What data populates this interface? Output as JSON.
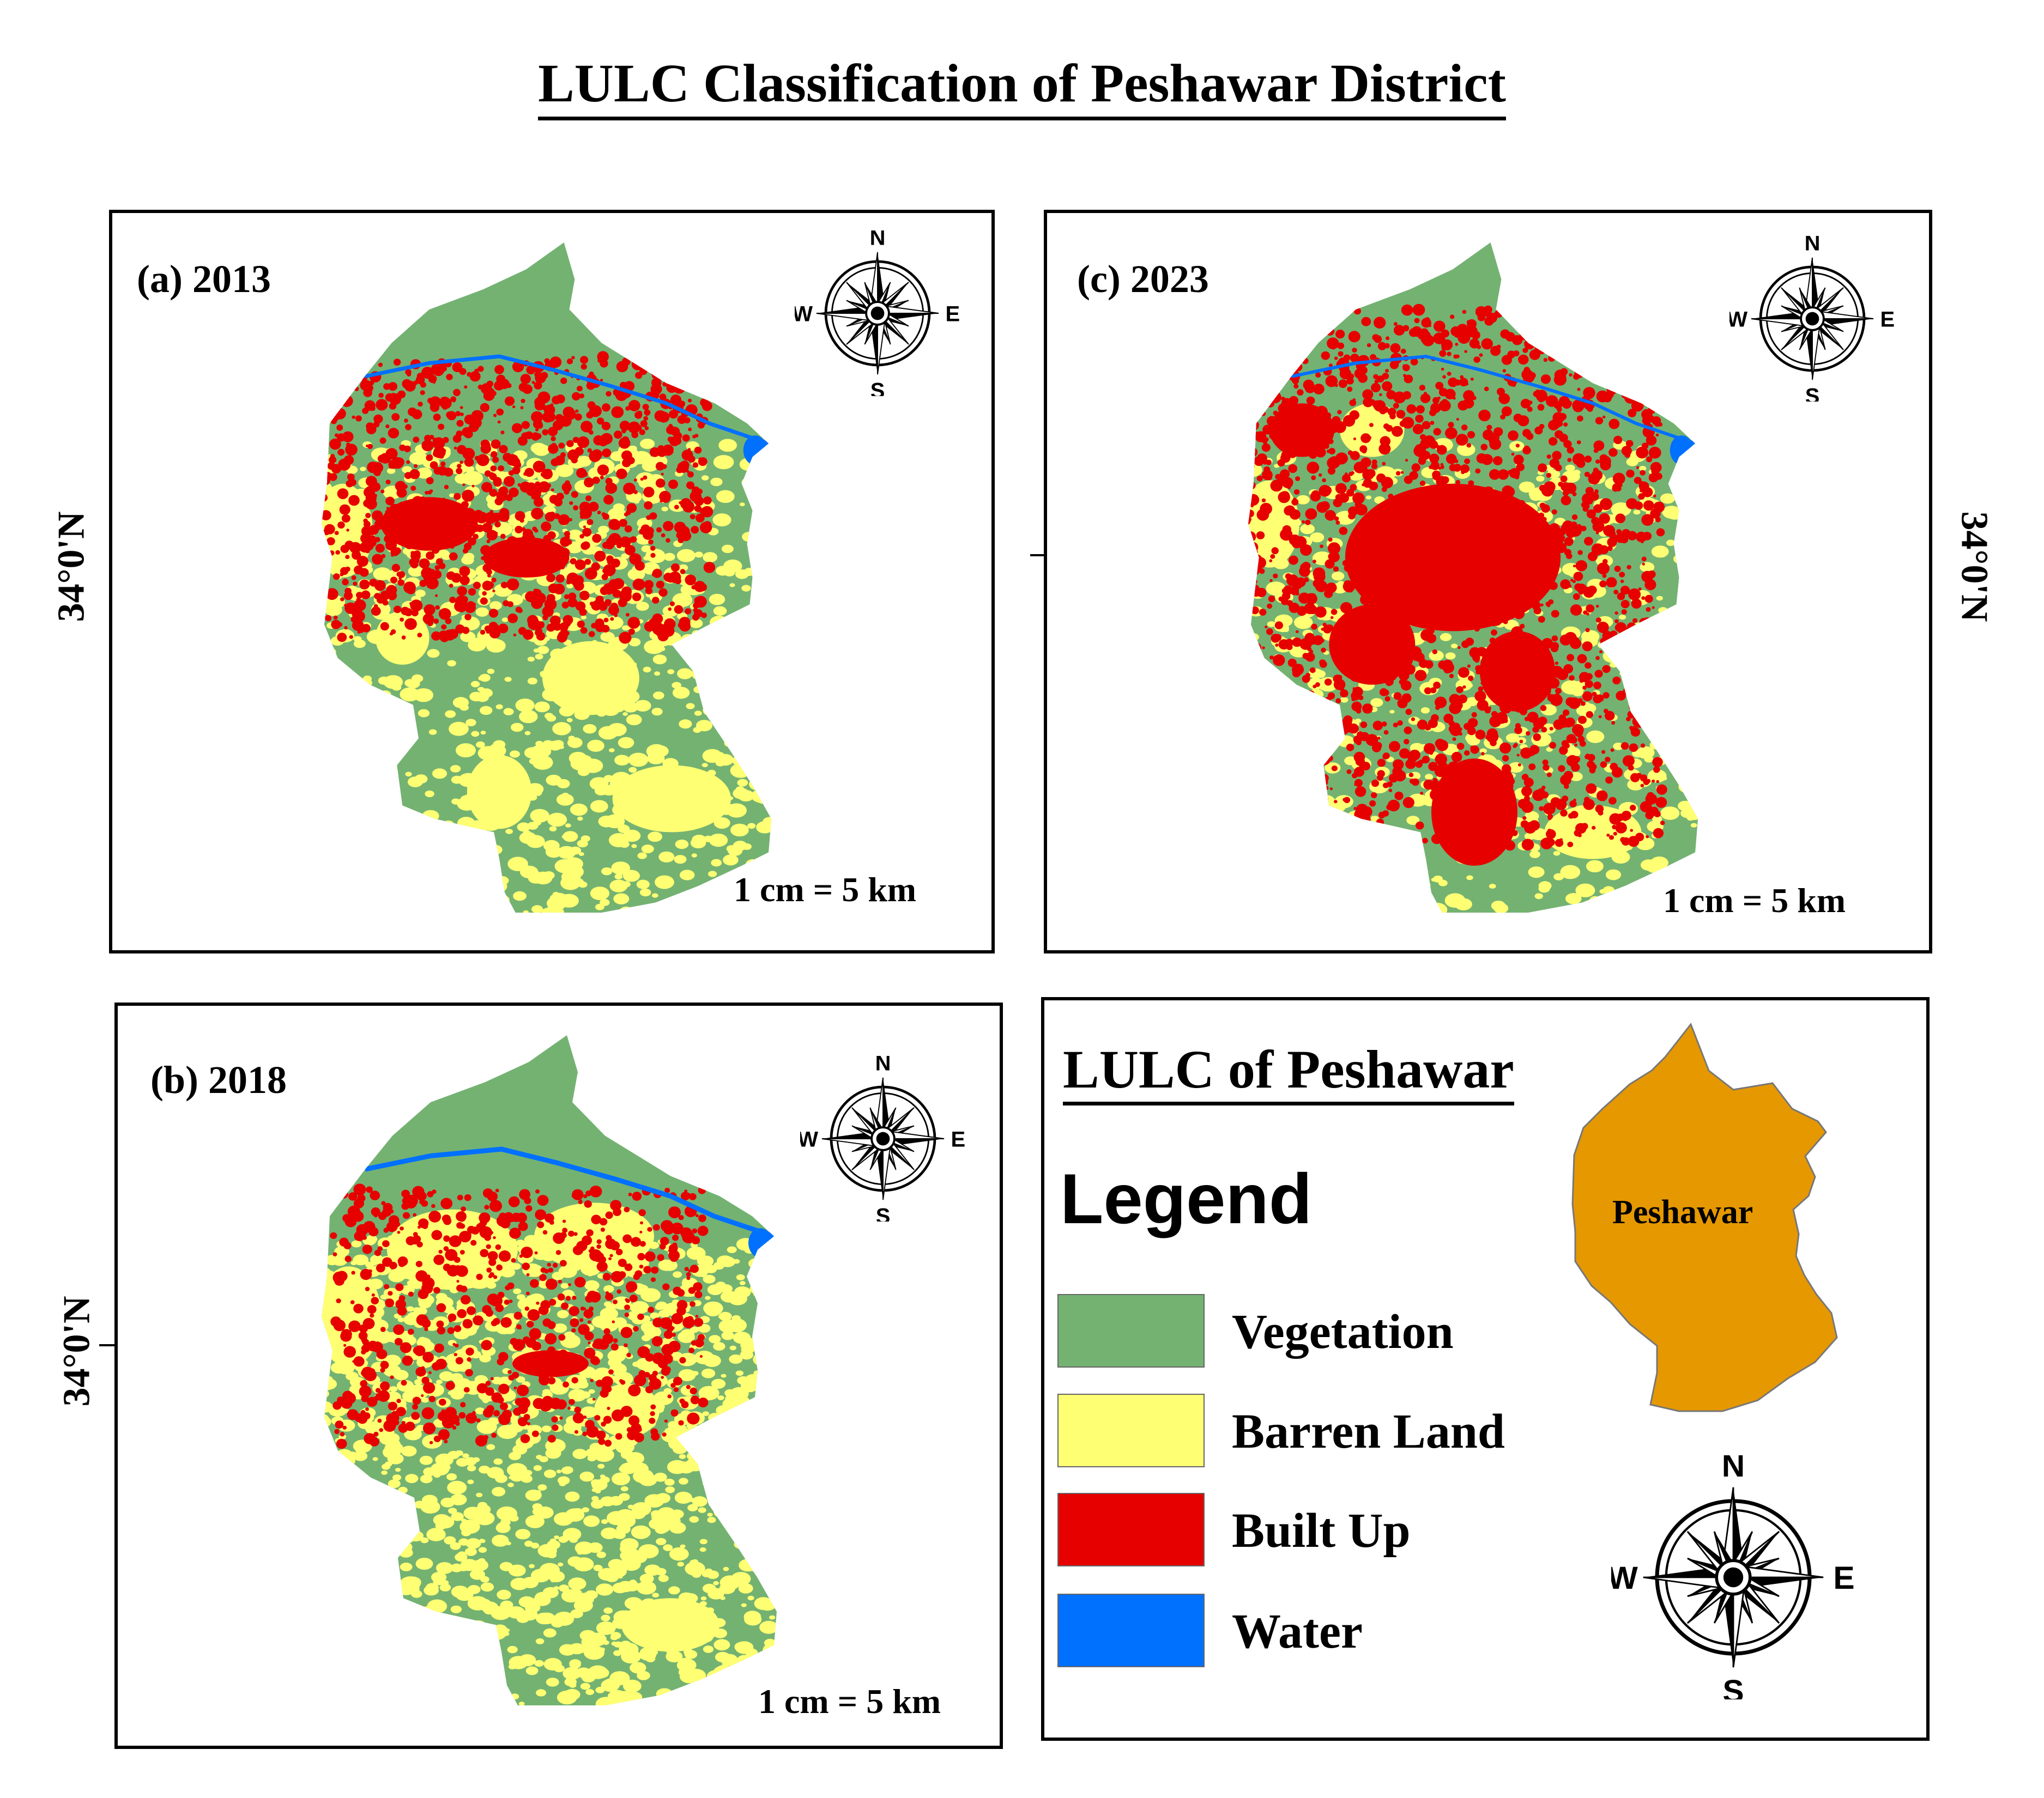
{
  "title": "LULC  Classification of  Peshawar  District",
  "colors": {
    "vegetation": "#74B272",
    "barren_land": "#FFFF73",
    "built_up": "#E60000",
    "water": "#0070FF",
    "inset_fill": "#E69800"
  },
  "panels": [
    {
      "id": "a",
      "label": "(a) 2013",
      "scale": "1 cm = 5 km",
      "latitude": "34°0'N"
    },
    {
      "id": "b",
      "label": "(b) 2018",
      "scale": "1 cm = 5 km",
      "latitude": "34°0'N"
    },
    {
      "id": "c",
      "label": "(c) 2023",
      "scale": "1 cm = 5 km",
      "latitude": "34°0'N"
    }
  ],
  "compass": {
    "north": "N",
    "south": "S",
    "east": "E",
    "west": "W"
  },
  "legend": {
    "title": "LULC of Peshawar",
    "heading": "Legend",
    "items": [
      {
        "label": "Vegetation",
        "color": "#74B272"
      },
      {
        "label": "Barren Land",
        "color": "#FFFF73"
      },
      {
        "label": "Built Up",
        "color": "#E60000"
      },
      {
        "label": "Water",
        "color": "#0070FF"
      }
    ],
    "inset_label": "Peshawar"
  }
}
